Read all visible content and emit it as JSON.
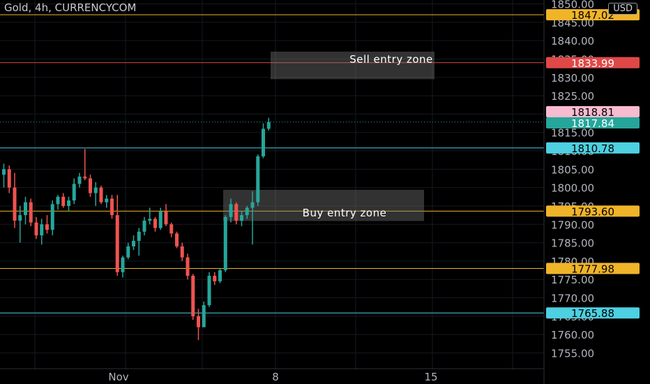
{
  "title": "Gold, 4h, CURRENCYCOM",
  "currency": "USD",
  "colors": {
    "up": "#26a69a",
    "down": "#ef5350",
    "yellow_line": "#f0b429",
    "cyan_line": "#4dd0e1",
    "red_line": "#e04848"
  },
  "chart_data": {
    "type": "candlestick",
    "ylim": [
      1751,
      1851
    ],
    "y_ticks": [
      "1755.00",
      "1760.00",
      "1765.00",
      "1770.00",
      "1775.00",
      "1780.00",
      "1785.00",
      "1790.00",
      "1795.00",
      "1800.00",
      "1805.00",
      "1810.00",
      "1815.00",
      "1820.00",
      "1825.00",
      "1830.00",
      "1835.00",
      "1840.00",
      "1845.00",
      "1850.00"
    ],
    "x_ticks": [
      "Nov",
      "8",
      "15"
    ],
    "horizontal_lines": [
      {
        "value": 1847.02,
        "label": "1847.02",
        "color": "yellow"
      },
      {
        "value": 1833.99,
        "label": "1833.99",
        "color": "red"
      },
      {
        "value": 1810.78,
        "label": "1810.78",
        "color": "cyan"
      },
      {
        "value": 1793.6,
        "label": "1793.60",
        "color": "yellow"
      },
      {
        "value": 1777.98,
        "label": "1777.98",
        "color": "yellow"
      },
      {
        "value": 1765.88,
        "label": "1765.88",
        "color": "cyan"
      }
    ],
    "price_tags": [
      {
        "value": 1818.81,
        "label": "1818.81",
        "bg": "#f8bbd0",
        "fg": "#000000"
      },
      {
        "value": 1817.84,
        "label": "1817.84",
        "bg": "#26a69a",
        "fg": "#ffffff"
      }
    ],
    "zones": [
      {
        "label": "Sell entry zone",
        "top": 1837.0,
        "bottom": 1829.5
      },
      {
        "label": "Buy entry zone",
        "top": 1799.4,
        "bottom": 1790.9
      }
    ],
    "candles": [
      [
        1803.5,
        1806.5,
        1800.0,
        1805.0
      ],
      [
        1805.0,
        1806.0,
        1798.5,
        1800.0
      ],
      [
        1800.0,
        1804.0,
        1789.0,
        1791.0
      ],
      [
        1791.0,
        1795.0,
        1785.0,
        1792.5
      ],
      [
        1792.5,
        1797.5,
        1790.0,
        1796.0
      ],
      [
        1796.0,
        1797.0,
        1789.5,
        1790.5
      ],
      [
        1790.5,
        1792.0,
        1786.0,
        1787.0
      ],
      [
        1787.0,
        1791.5,
        1784.5,
        1790.0
      ],
      [
        1790.0,
        1792.5,
        1787.5,
        1788.5
      ],
      [
        1788.5,
        1796.5,
        1787.0,
        1795.5
      ],
      [
        1795.5,
        1798.0,
        1794.0,
        1797.5
      ],
      [
        1797.5,
        1798.5,
        1794.5,
        1795.0
      ],
      [
        1795.0,
        1797.5,
        1793.5,
        1796.5
      ],
      [
        1796.5,
        1802.5,
        1795.5,
        1801.0
      ],
      [
        1801.0,
        1804.0,
        1800.0,
        1803.0
      ],
      [
        1803.0,
        1810.5,
        1802.0,
        1802.5
      ],
      [
        1802.5,
        1803.5,
        1797.5,
        1798.5
      ],
      [
        1798.5,
        1801.5,
        1795.0,
        1800.0
      ],
      [
        1800.0,
        1800.5,
        1795.5,
        1796.0
      ],
      [
        1796.0,
        1798.0,
        1794.5,
        1797.0
      ],
      [
        1797.0,
        1798.0,
        1791.5,
        1792.5
      ],
      [
        1792.5,
        1798.0,
        1776.0,
        1777.0
      ],
      [
        1777.0,
        1781.5,
        1775.5,
        1781.0
      ],
      [
        1781.0,
        1785.0,
        1780.5,
        1784.0
      ],
      [
        1784.0,
        1787.0,
        1783.0,
        1785.5
      ],
      [
        1785.5,
        1789.0,
        1781.5,
        1788.0
      ],
      [
        1788.0,
        1792.0,
        1787.0,
        1791.0
      ],
      [
        1791.0,
        1794.5,
        1790.0,
        1791.5
      ],
      [
        1791.5,
        1792.0,
        1788.0,
        1789.0
      ],
      [
        1789.0,
        1794.5,
        1788.5,
        1793.5
      ],
      [
        1793.5,
        1795.5,
        1789.5,
        1790.0
      ],
      [
        1790.0,
        1790.5,
        1786.5,
        1787.5
      ],
      [
        1787.5,
        1788.0,
        1783.5,
        1784.0
      ],
      [
        1784.0,
        1785.0,
        1780.0,
        1781.0
      ],
      [
        1781.0,
        1782.0,
        1775.0,
        1776.0
      ],
      [
        1776.0,
        1776.5,
        1764.0,
        1765.0
      ],
      [
        1765.0,
        1767.0,
        1758.5,
        1762.0
      ],
      [
        1762.0,
        1769.0,
        1762.0,
        1768.0
      ],
      [
        1768.0,
        1777.0,
        1767.5,
        1776.0
      ],
      [
        1776.0,
        1777.0,
        1773.5,
        1774.5
      ],
      [
        1774.5,
        1778.0,
        1774.0,
        1777.5
      ],
      [
        1777.5,
        1792.5,
        1777.0,
        1792.0
      ],
      [
        1792.0,
        1797.0,
        1790.5,
        1795.5
      ],
      [
        1795.5,
        1796.0,
        1790.0,
        1791.0
      ],
      [
        1791.0,
        1793.5,
        1789.5,
        1792.5
      ],
      [
        1792.5,
        1795.0,
        1791.5,
        1794.5
      ],
      [
        1794.5,
        1799.0,
        1784.5,
        1796.0
      ],
      [
        1796.0,
        1809.0,
        1795.0,
        1808.5
      ],
      [
        1808.5,
        1817.5,
        1808.0,
        1816.0
      ],
      [
        1816.0,
        1819.0,
        1815.5,
        1817.84
      ]
    ]
  }
}
